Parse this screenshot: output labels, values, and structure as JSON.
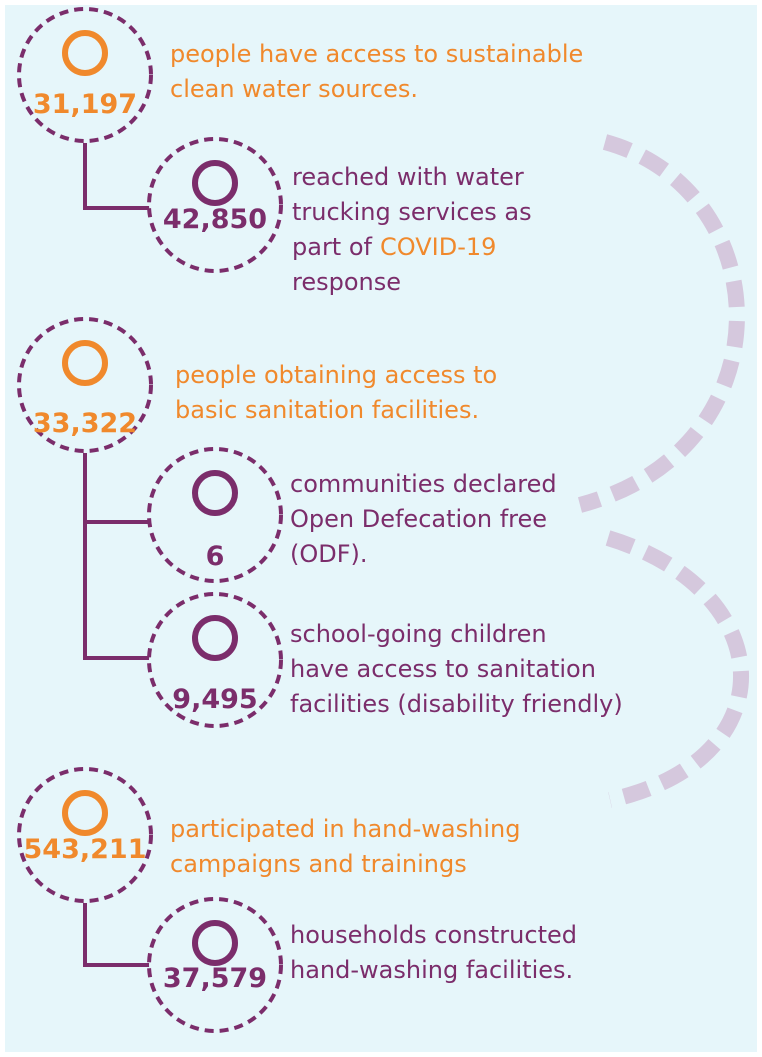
{
  "items": [
    {
      "number": "31,197",
      "color": "#f0892c",
      "lines": [
        [
          {
            "text": "people have access to sustainable",
            "color": "#f0892c"
          }
        ],
        [
          {
            "text": "clean water sources.",
            "color": "#f0892c"
          }
        ]
      ]
    },
    {
      "number": "42,850",
      "color": "#7b2d6b",
      "lines": [
        [
          {
            "text": "reached with water",
            "color": "#7b2d6b"
          }
        ],
        [
          {
            "text": "trucking services as",
            "color": "#7b2d6b"
          }
        ],
        [
          {
            "text": "part of",
            "color": "#7b2d6b"
          },
          {
            "text": "COVID-19",
            "color": "#f0892c"
          }
        ],
        [
          {
            "text": "response",
            "color": "#7b2d6b"
          }
        ]
      ]
    },
    {
      "number": "33,322",
      "color": "#f0892c",
      "lines": [
        [
          {
            "text": "people obtaining access to",
            "color": "#f0892c"
          }
        ],
        [
          {
            "text": "basic sanitation facilities.",
            "color": "#f0892c"
          }
        ]
      ]
    },
    {
      "number": "6",
      "color": "#7b2d6b",
      "lines": [
        [
          {
            "text": "communities declared",
            "color": "#7b2d6b"
          }
        ],
        [
          {
            "text": "Open Defecation free",
            "color": "#7b2d6b"
          }
        ],
        [
          {
            "text": "(ODF).",
            "color": "#7b2d6b"
          }
        ]
      ]
    },
    {
      "number": "9,495",
      "color": "#7b2d6b",
      "lines": [
        [
          {
            "text": "school-going children",
            "color": "#7b2d6b"
          }
        ],
        [
          {
            "text": "have access to sanitation",
            "color": "#7b2d6b"
          }
        ],
        [
          {
            "text": "facilities (disability friendly)",
            "color": "#7b2d6b"
          }
        ]
      ]
    },
    {
      "number": "543,211",
      "color": "#f0892c",
      "lines": [
        [
          {
            "text": "participated in hand-washing",
            "color": "#f0892c"
          }
        ],
        [
          {
            "text": "campaigns and trainings",
            "color": "#f0892c"
          }
        ]
      ]
    },
    {
      "number": "37,579",
      "color": "#7b2d6b",
      "lines": [
        [
          {
            "text": "households constructed",
            "color": "#7b2d6b"
          }
        ],
        [
          {
            "text": "hand-washing facilities.",
            "color": "#7b2d6b"
          }
        ]
      ]
    }
  ]
}
